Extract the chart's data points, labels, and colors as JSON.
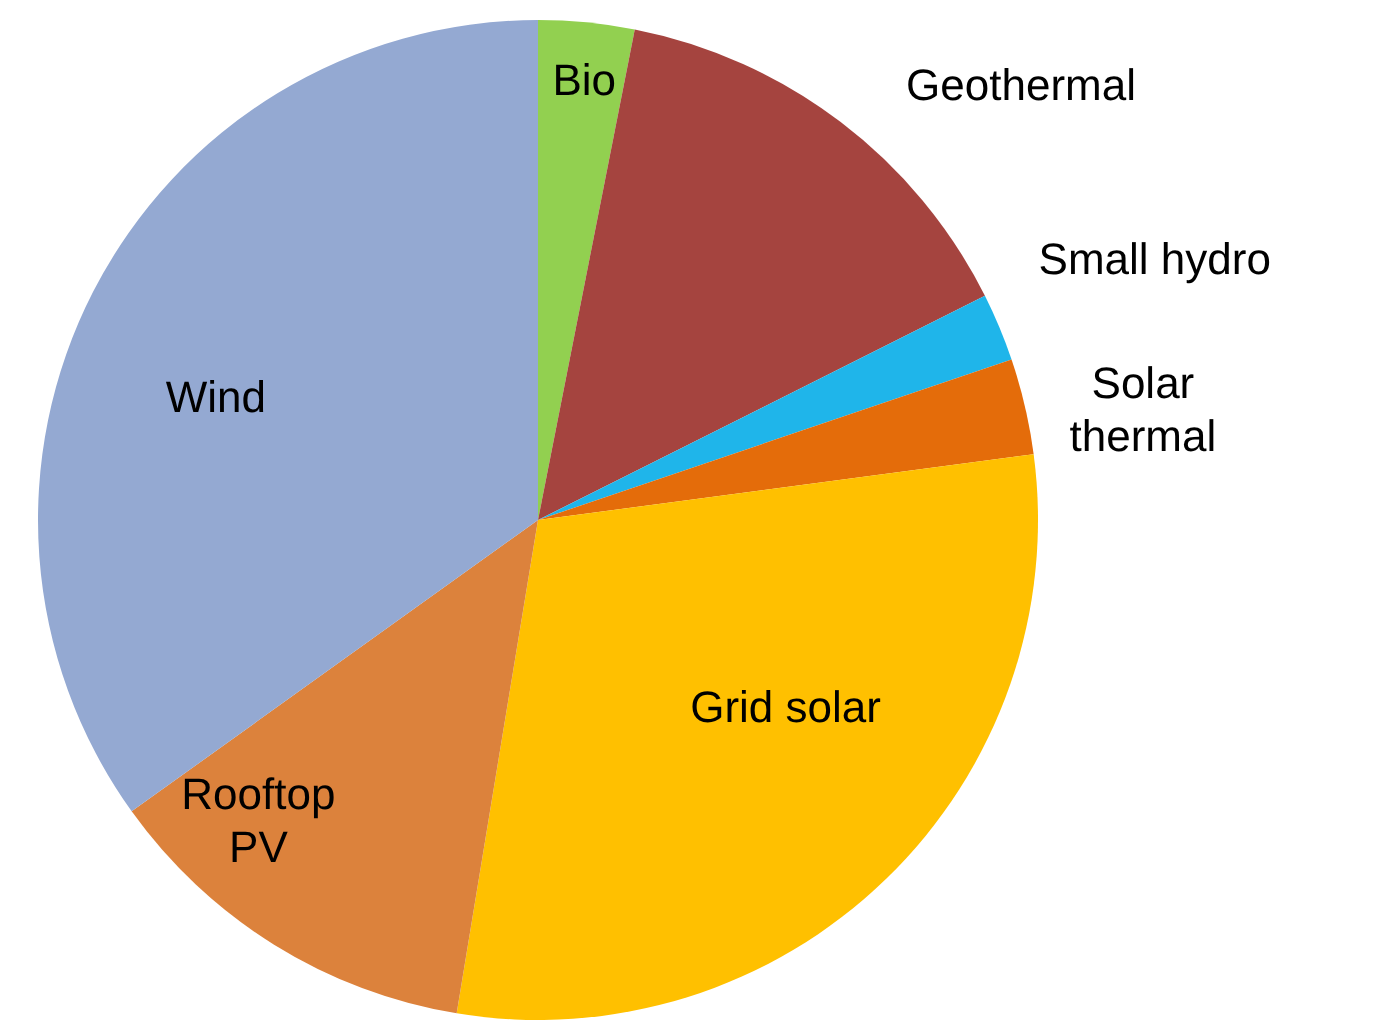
{
  "chart_data": {
    "type": "pie",
    "categories": [
      "Bio",
      "Geothermal",
      "Small hydro",
      "Solar thermal",
      "Grid solar",
      "Rooftop PV",
      "Wind"
    ],
    "values": [
      3.1,
      14.5,
      2.2,
      3.1,
      29.7,
      12.5,
      34.9
    ],
    "colors": [
      "#92d050",
      "#a5443f",
      "#1fb5ea",
      "#e46c0a",
      "#ffc000",
      "#dc823c",
      "#94a9d2"
    ]
  }
}
